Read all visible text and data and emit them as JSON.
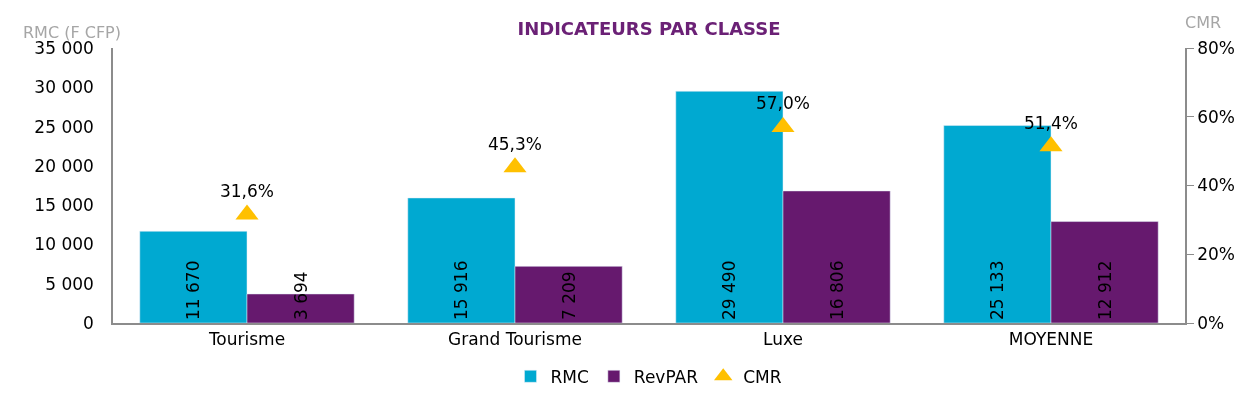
{
  "chart_data": {
    "type": "bar",
    "title": "INDICATEURS PAR CLASSE",
    "ylabel": "RMC (F CFP)",
    "y2label": "CMR",
    "categories": [
      "Tourisme",
      "Grand Tourisme",
      "Luxe",
      "MOYENNE"
    ],
    "series": [
      {
        "name": "RMC",
        "color": "#00a9d1",
        "values": [
          11670,
          15916,
          29490,
          25133
        ],
        "value_labels": [
          "11 670",
          "15 916",
          "29 490",
          "25 133"
        ]
      },
      {
        "name": "RevPAR",
        "color": "#66196e",
        "values": [
          3694,
          7209,
          16806,
          12912
        ],
        "value_labels": [
          "3 694",
          "7 209",
          "16 806",
          "12 912"
        ]
      },
      {
        "name": "CMR",
        "type": "scatter",
        "axis": "y2",
        "color": "#ffc000",
        "marker": "triangle",
        "values": [
          31.6,
          45.3,
          57.0,
          51.4
        ],
        "value_labels": [
          "31,6%",
          "45,3%",
          "57,0%",
          "51,4%"
        ]
      }
    ],
    "ylim": [
      0,
      35000
    ],
    "yticks": [
      0,
      {
        "value": 5000,
        "label": "5 000"
      },
      {
        "value": 10000,
        "label": "10 000"
      },
      {
        "value": 15000,
        "label": "15 000"
      },
      {
        "value": 20000,
        "label": "20 000"
      },
      {
        "value": 25000,
        "label": "25 000"
      },
      {
        "value": 30000,
        "label": "30 000"
      },
      {
        "value": 35000,
        "label": "35 000"
      }
    ],
    "y2lim": [
      0,
      80
    ],
    "y2ticks": [
      {
        "value": 0,
        "label": "0%"
      },
      {
        "value": 20,
        "label": "20%"
      },
      {
        "value": 40,
        "label": "40%"
      },
      {
        "value": 60,
        "label": "60%"
      },
      {
        "value": 80,
        "label": "80%"
      }
    ],
    "grid": false,
    "legend": "bottom"
  }
}
